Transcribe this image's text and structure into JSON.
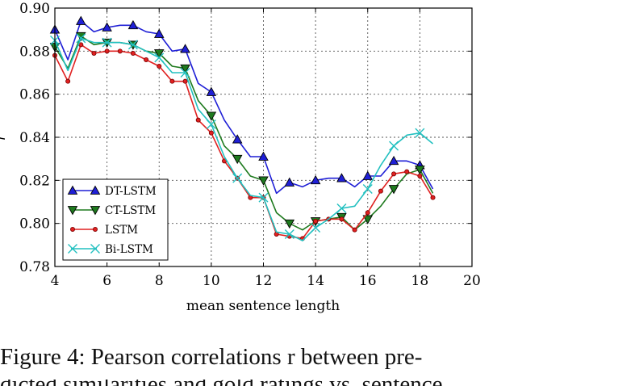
{
  "chart_data": {
    "type": "line",
    "xlabel": "mean sentence length",
    "ylabel": "r",
    "xlim": [
      4,
      20
    ],
    "ylim": [
      0.78,
      0.9
    ],
    "xticks": [
      "4",
      "6",
      "8",
      "10",
      "12",
      "14",
      "16",
      "18",
      "20"
    ],
    "yticks": [
      "0.78",
      "0.80",
      "0.82",
      "0.84",
      "0.86",
      "0.88",
      "0.90"
    ],
    "grid": true,
    "legend_position": "bottom-left",
    "x": [
      4,
      4.5,
      5,
      5.5,
      6,
      6.5,
      7,
      7.5,
      8,
      8.5,
      9,
      9.5,
      10,
      10.5,
      11,
      11.5,
      12,
      12.5,
      13,
      13.5,
      14,
      14.5,
      15,
      15.5,
      16,
      16.5,
      17,
      17.5,
      18,
      18.5
    ],
    "series": [
      {
        "name": "DT-LSTM",
        "color": "#1f1fd6",
        "marker": "triangle-up",
        "values": [
          0.89,
          0.876,
          0.894,
          0.889,
          0.891,
          0.892,
          0.892,
          0.889,
          0.888,
          0.88,
          0.881,
          0.865,
          0.861,
          0.848,
          0.839,
          0.831,
          0.831,
          0.814,
          0.819,
          0.817,
          0.82,
          0.821,
          0.821,
          0.817,
          0.822,
          0.822,
          0.829,
          0.829,
          0.827,
          0.816
        ]
      },
      {
        "name": "CT-LSTM",
        "color": "#1e7a1e",
        "marker": "triangle-down",
        "values": [
          0.882,
          0.872,
          0.887,
          0.883,
          0.884,
          0.884,
          0.883,
          0.88,
          0.879,
          0.873,
          0.872,
          0.857,
          0.85,
          0.836,
          0.83,
          0.822,
          0.82,
          0.805,
          0.8,
          0.797,
          0.801,
          0.802,
          0.803,
          0.797,
          0.802,
          0.808,
          0.816,
          0.823,
          0.825,
          0.814
        ]
      },
      {
        "name": "LSTM",
        "color": "#e02020",
        "marker": "circle",
        "values": [
          0.878,
          0.866,
          0.883,
          0.879,
          0.88,
          0.88,
          0.879,
          0.876,
          0.873,
          0.866,
          0.866,
          0.848,
          0.842,
          0.829,
          0.821,
          0.812,
          0.812,
          0.795,
          0.794,
          0.793,
          0.801,
          0.802,
          0.802,
          0.797,
          0.805,
          0.815,
          0.823,
          0.824,
          0.822,
          0.812
        ]
      },
      {
        "name": "Bi-LSTM",
        "color": "#22c0c0",
        "marker": "x",
        "values": [
          0.885,
          0.871,
          0.886,
          0.884,
          0.884,
          0.884,
          0.883,
          0.88,
          0.877,
          0.87,
          0.87,
          0.853,
          0.846,
          0.831,
          0.821,
          0.813,
          0.812,
          0.796,
          0.795,
          0.792,
          0.798,
          0.802,
          0.807,
          0.808,
          0.816,
          0.827,
          0.836,
          0.841,
          0.842,
          0.837
        ]
      }
    ]
  },
  "caption": {
    "line1": "Figure 4:  Pearson correlations r between pre-",
    "line2": "dicted similarities and gold ratings vs. sentence"
  }
}
